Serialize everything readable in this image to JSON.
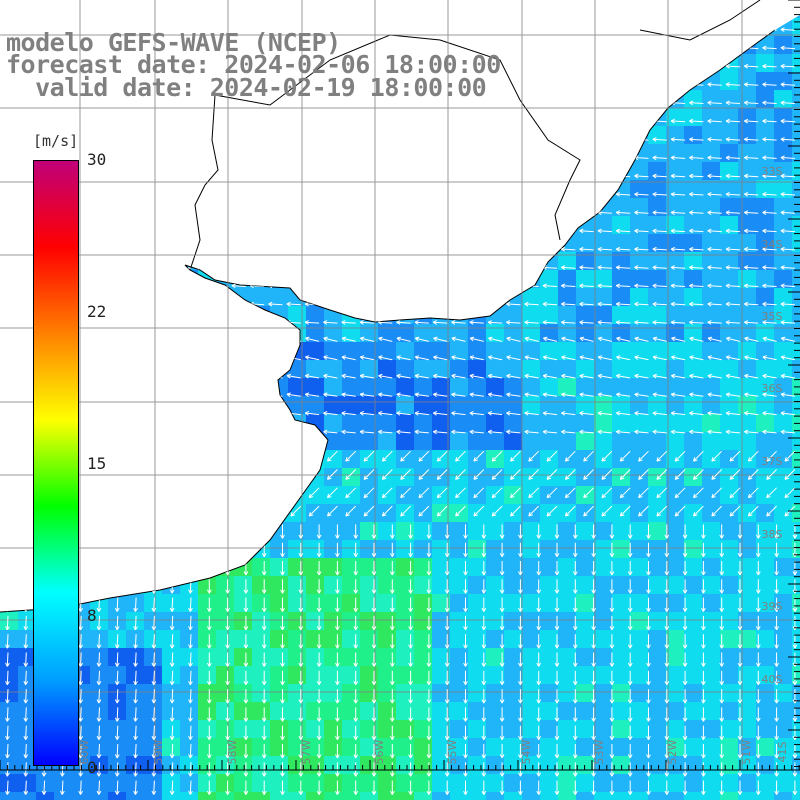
{
  "header": {
    "model": "modelo GEFS-WAVE (NCEP)",
    "forecast": "forecast date: 2024-02-06 18:00:00",
    "valid": "  valid date: 2024-02-19 18:00:00"
  },
  "colorbar": {
    "unit": "[m/s]",
    "ticks": [
      "30",
      "22",
      "15",
      "8",
      "0"
    ],
    "colors": [
      "#0000ff",
      "#00a0ff",
      "#00ffff",
      "#00ff00",
      "#ffff00",
      "#ff8000",
      "#ff0000",
      "#c0007a"
    ]
  },
  "map": {
    "lat_labels": [
      "33S",
      "34S",
      "35S",
      "36S",
      "37S",
      "38S",
      "39S",
      "40S"
    ],
    "lon_labels": [
      "60W",
      "59W",
      "58W",
      "57W",
      "56W",
      "55W",
      "54W",
      "53W",
      "52W",
      "51W",
      "41S"
    ],
    "land_color": "#ffffff",
    "grid_color": "#808080",
    "arrow_color": "#ffffff"
  }
}
